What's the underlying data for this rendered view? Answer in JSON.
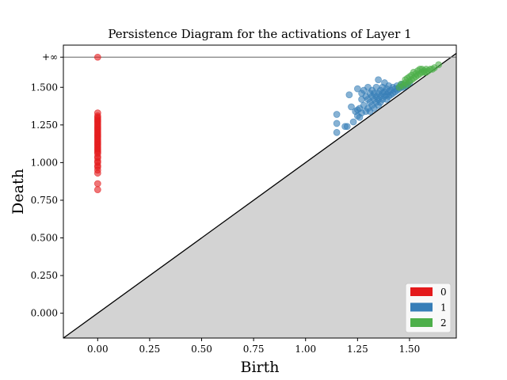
{
  "chart_data": {
    "type": "scatter",
    "title": "Persistence Diagram for the activations of Layer 1",
    "xlabel": "Birth",
    "ylabel": "Death",
    "xlim": [
      -0.165,
      1.725
    ],
    "ylim": [
      -0.165,
      1.78
    ],
    "x_ticks": [
      {
        "value": 0.0,
        "label": "0.00"
      },
      {
        "value": 0.25,
        "label": "0.25"
      },
      {
        "value": 0.5,
        "label": "0.50"
      },
      {
        "value": 0.75,
        "label": "0.75"
      },
      {
        "value": 1.0,
        "label": "1.00"
      },
      {
        "value": 1.25,
        "label": "1.25"
      },
      {
        "value": 1.5,
        "label": "1.50"
      }
    ],
    "y_ticks": [
      {
        "value": 0.0,
        "label": "0.000"
      },
      {
        "value": 0.25,
        "label": "0.250"
      },
      {
        "value": 0.5,
        "label": "0.500"
      },
      {
        "value": 0.75,
        "label": "0.750"
      },
      {
        "value": 1.0,
        "label": "1.000"
      },
      {
        "value": 1.25,
        "label": "1.250"
      },
      {
        "value": 1.5,
        "label": "1.500"
      }
    ],
    "infinity": {
      "value": 1.7,
      "label": "+∞",
      "line_color": "#808080"
    },
    "diagonal": {
      "from": [
        -0.165,
        -0.165
      ],
      "to": [
        1.725,
        1.725
      ],
      "below_fill": "#d3d3d3"
    },
    "legend": {
      "position": "lower-right",
      "entries": [
        {
          "label": "0",
          "color": "#e41a1c"
        },
        {
          "label": "1",
          "color": "#377eb8"
        },
        {
          "label": "2",
          "color": "#4daf4a"
        }
      ]
    },
    "series": [
      {
        "color": "#e41a1c",
        "points": [
          [
            0.0,
            1.7
          ],
          [
            0.0,
            1.33
          ],
          [
            0.0,
            1.31
          ],
          [
            0.0,
            1.3
          ],
          [
            0.0,
            1.29
          ],
          [
            0.0,
            1.28
          ],
          [
            0.0,
            1.27
          ],
          [
            0.0,
            1.26
          ],
          [
            0.0,
            1.25
          ],
          [
            0.0,
            1.24
          ],
          [
            0.0,
            1.23
          ],
          [
            0.0,
            1.22
          ],
          [
            0.0,
            1.21
          ],
          [
            0.0,
            1.2
          ],
          [
            0.0,
            1.19
          ],
          [
            0.0,
            1.18
          ],
          [
            0.0,
            1.17
          ],
          [
            0.0,
            1.16
          ],
          [
            0.0,
            1.15
          ],
          [
            0.0,
            1.14
          ],
          [
            0.0,
            1.13
          ],
          [
            0.0,
            1.12
          ],
          [
            0.0,
            1.11
          ],
          [
            0.0,
            1.1
          ],
          [
            0.0,
            1.09
          ],
          [
            0.0,
            1.08
          ],
          [
            0.0,
            1.07
          ],
          [
            0.0,
            1.06
          ],
          [
            0.0,
            1.04
          ],
          [
            0.0,
            1.03
          ],
          [
            0.0,
            1.01
          ],
          [
            0.0,
            1.0
          ],
          [
            0.0,
            0.98
          ],
          [
            0.0,
            0.97
          ],
          [
            0.0,
            0.95
          ],
          [
            0.0,
            0.93
          ],
          [
            0.0,
            0.86
          ],
          [
            0.0,
            0.82
          ]
        ]
      },
      {
        "color": "#377eb8",
        "points": [
          [
            1.15,
            1.2
          ],
          [
            1.15,
            1.26
          ],
          [
            1.15,
            1.32
          ],
          [
            1.19,
            1.24
          ],
          [
            1.2,
            1.24
          ],
          [
            1.21,
            1.45
          ],
          [
            1.22,
            1.37
          ],
          [
            1.23,
            1.27
          ],
          [
            1.24,
            1.34
          ],
          [
            1.25,
            1.31
          ],
          [
            1.25,
            1.35
          ],
          [
            1.25,
            1.49
          ],
          [
            1.26,
            1.3
          ],
          [
            1.26,
            1.36
          ],
          [
            1.27,
            1.33
          ],
          [
            1.27,
            1.42
          ],
          [
            1.27,
            1.46
          ],
          [
            1.28,
            1.38
          ],
          [
            1.28,
            1.48
          ],
          [
            1.29,
            1.34
          ],
          [
            1.29,
            1.44
          ],
          [
            1.3,
            1.36
          ],
          [
            1.3,
            1.42
          ],
          [
            1.3,
            1.5
          ],
          [
            1.31,
            1.34
          ],
          [
            1.31,
            1.4
          ],
          [
            1.31,
            1.46
          ],
          [
            1.32,
            1.38
          ],
          [
            1.32,
            1.44
          ],
          [
            1.32,
            1.48
          ],
          [
            1.33,
            1.36
          ],
          [
            1.33,
            1.42
          ],
          [
            1.33,
            1.46
          ],
          [
            1.34,
            1.4
          ],
          [
            1.34,
            1.44
          ],
          [
            1.34,
            1.5
          ],
          [
            1.35,
            1.38
          ],
          [
            1.35,
            1.42
          ],
          [
            1.35,
            1.46
          ],
          [
            1.35,
            1.55
          ],
          [
            1.36,
            1.4
          ],
          [
            1.36,
            1.44
          ],
          [
            1.36,
            1.48
          ],
          [
            1.37,
            1.42
          ],
          [
            1.37,
            1.46
          ],
          [
            1.37,
            1.5
          ],
          [
            1.38,
            1.44
          ],
          [
            1.38,
            1.47
          ],
          [
            1.38,
            1.53
          ],
          [
            1.39,
            1.42
          ],
          [
            1.39,
            1.45
          ],
          [
            1.39,
            1.49
          ],
          [
            1.4,
            1.44
          ],
          [
            1.4,
            1.47
          ],
          [
            1.4,
            1.51
          ],
          [
            1.41,
            1.45
          ],
          [
            1.41,
            1.48
          ],
          [
            1.42,
            1.46
          ],
          [
            1.42,
            1.5
          ],
          [
            1.43,
            1.47
          ],
          [
            1.43,
            1.49
          ],
          [
            1.44,
            1.48
          ],
          [
            1.44,
            1.51
          ],
          [
            1.45,
            1.49
          ],
          [
            1.45,
            1.5
          ],
          [
            1.46,
            1.5
          ],
          [
            1.46,
            1.52
          ],
          [
            1.47,
            1.5
          ],
          [
            1.47,
            1.52
          ],
          [
            1.48,
            1.51
          ],
          [
            1.49,
            1.52
          ],
          [
            1.5,
            1.53
          ]
        ]
      },
      {
        "color": "#4daf4a",
        "points": [
          [
            1.45,
            1.5
          ],
          [
            1.46,
            1.52
          ],
          [
            1.47,
            1.51
          ],
          [
            1.48,
            1.53
          ],
          [
            1.48,
            1.55
          ],
          [
            1.49,
            1.52
          ],
          [
            1.49,
            1.56
          ],
          [
            1.5,
            1.54
          ],
          [
            1.5,
            1.57
          ],
          [
            1.51,
            1.55
          ],
          [
            1.51,
            1.58
          ],
          [
            1.52,
            1.56
          ],
          [
            1.52,
            1.6
          ],
          [
            1.53,
            1.57
          ],
          [
            1.53,
            1.59
          ],
          [
            1.54,
            1.58
          ],
          [
            1.54,
            1.61
          ],
          [
            1.55,
            1.59
          ],
          [
            1.55,
            1.62
          ],
          [
            1.56,
            1.6
          ],
          [
            1.56,
            1.62
          ],
          [
            1.57,
            1.6
          ],
          [
            1.57,
            1.61
          ],
          [
            1.58,
            1.6
          ],
          [
            1.58,
            1.62
          ],
          [
            1.59,
            1.61
          ],
          [
            1.6,
            1.62
          ],
          [
            1.61,
            1.62
          ],
          [
            1.62,
            1.63
          ],
          [
            1.64,
            1.65
          ]
        ]
      }
    ]
  }
}
